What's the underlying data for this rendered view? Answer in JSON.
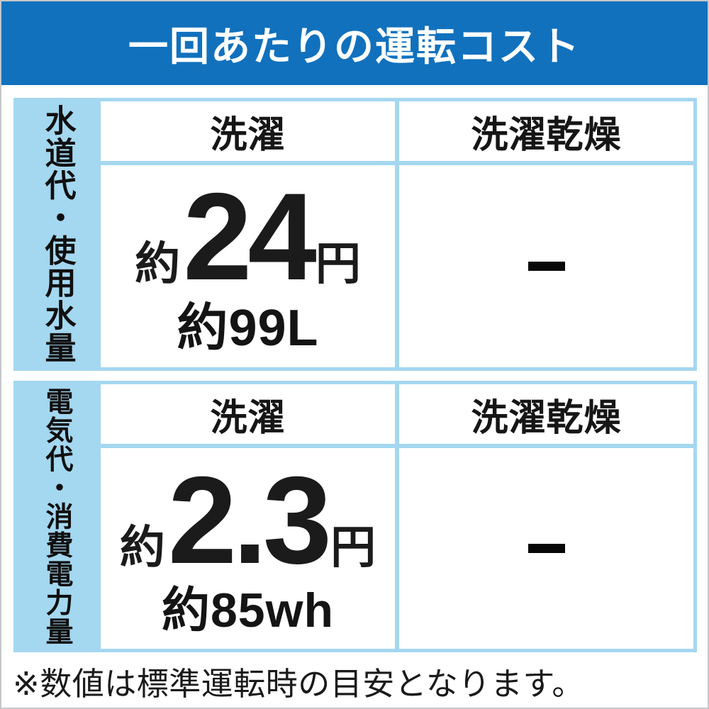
{
  "title": "一回あたりの運転コスト",
  "note": "※数値は標準運転時の目安となります。",
  "colors": {
    "banner_blue": "#1171bd",
    "light_blue": "#a4d7f0",
    "text_black": "#141414"
  },
  "tables": [
    {
      "side_label": "水道代・使用水量",
      "col1": "洗濯",
      "col2": "洗濯乾燥",
      "value_prefix": "約",
      "value": "24",
      "value_unit": "円",
      "sub_value": "約99L",
      "no_value": "-"
    },
    {
      "side_label": "電気代・消費電力量",
      "col1": "洗濯",
      "col2": "洗濯乾燥",
      "value_prefix": "約",
      "value": "2.3",
      "value_unit": "円",
      "sub_value": "約85wh",
      "no_value": "-"
    }
  ],
  "chart_data": {
    "type": "table",
    "title": "一回あたりの運転コスト",
    "columns": [
      "",
      "洗濯",
      "洗濯乾燥"
    ],
    "rows": [
      {
        "label": "水道代・使用水量",
        "洗濯": "約24円（約99L）",
        "洗濯乾燥": "-"
      },
      {
        "label": "電気代・消費電力量",
        "洗濯": "約2.3円（約85wh）",
        "洗濯乾燥": "-"
      }
    ],
    "note": "※数値は標準運転時の目安となります。",
    "layout": "row headers on left in light-blue band, title banner blue on top, dash means not applicable"
  }
}
